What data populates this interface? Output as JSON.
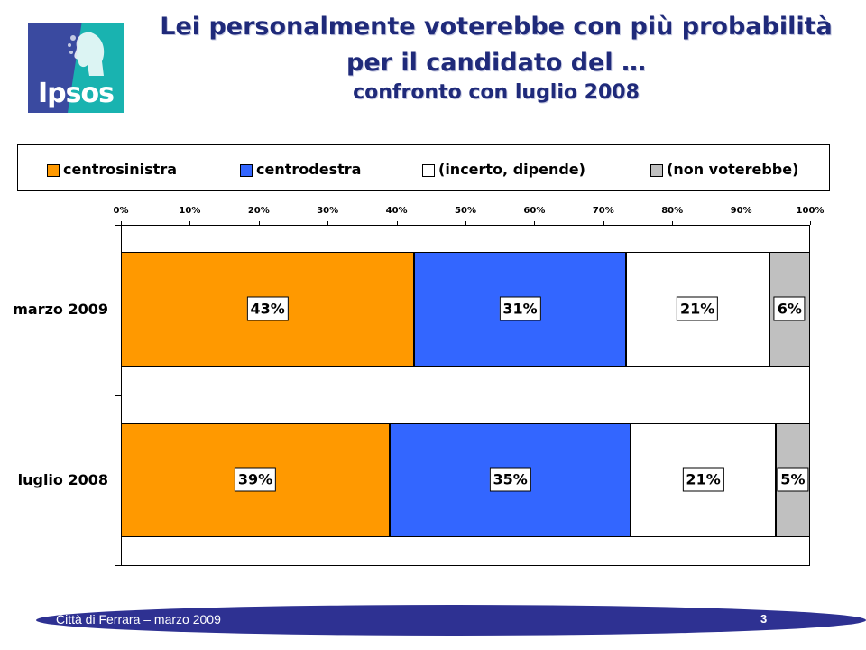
{
  "logo": {
    "text": "Ipsos"
  },
  "title": {
    "line1": "Lei personalmente voterebbe con più probabilità",
    "line2": "per il candidato del …",
    "line3": "confronto con luglio 2008"
  },
  "footer": {
    "text": "Città di Ferrara – marzo 2009",
    "page": "3"
  },
  "chart_data": {
    "type": "bar",
    "orientation": "horizontal",
    "stacked": true,
    "percent": true,
    "categories": [
      "marzo 2009",
      "luglio 2008"
    ],
    "x_ticks": [
      "0%",
      "10%",
      "20%",
      "30%",
      "40%",
      "50%",
      "60%",
      "70%",
      "80%",
      "90%",
      "100%"
    ],
    "xlim": [
      0,
      100
    ],
    "legend_position": "top",
    "series": [
      {
        "name": "centrosinistra",
        "color": "#ff9900",
        "values": [
          43,
          39
        ],
        "labels": [
          "43%",
          "39%"
        ]
      },
      {
        "name": "centrodestra",
        "color": "#3366ff",
        "values": [
          31,
          35
        ],
        "labels": [
          "31%",
          "35%"
        ]
      },
      {
        "name": "(incerto, dipende)",
        "color": "#ffffff",
        "values": [
          21,
          21
        ],
        "labels": [
          "21%",
          "21%"
        ]
      },
      {
        "name": "(non voterebbe)",
        "color": "#c0c0c0",
        "values": [
          6,
          5
        ],
        "labels": [
          "6%",
          "5%"
        ]
      }
    ]
  }
}
